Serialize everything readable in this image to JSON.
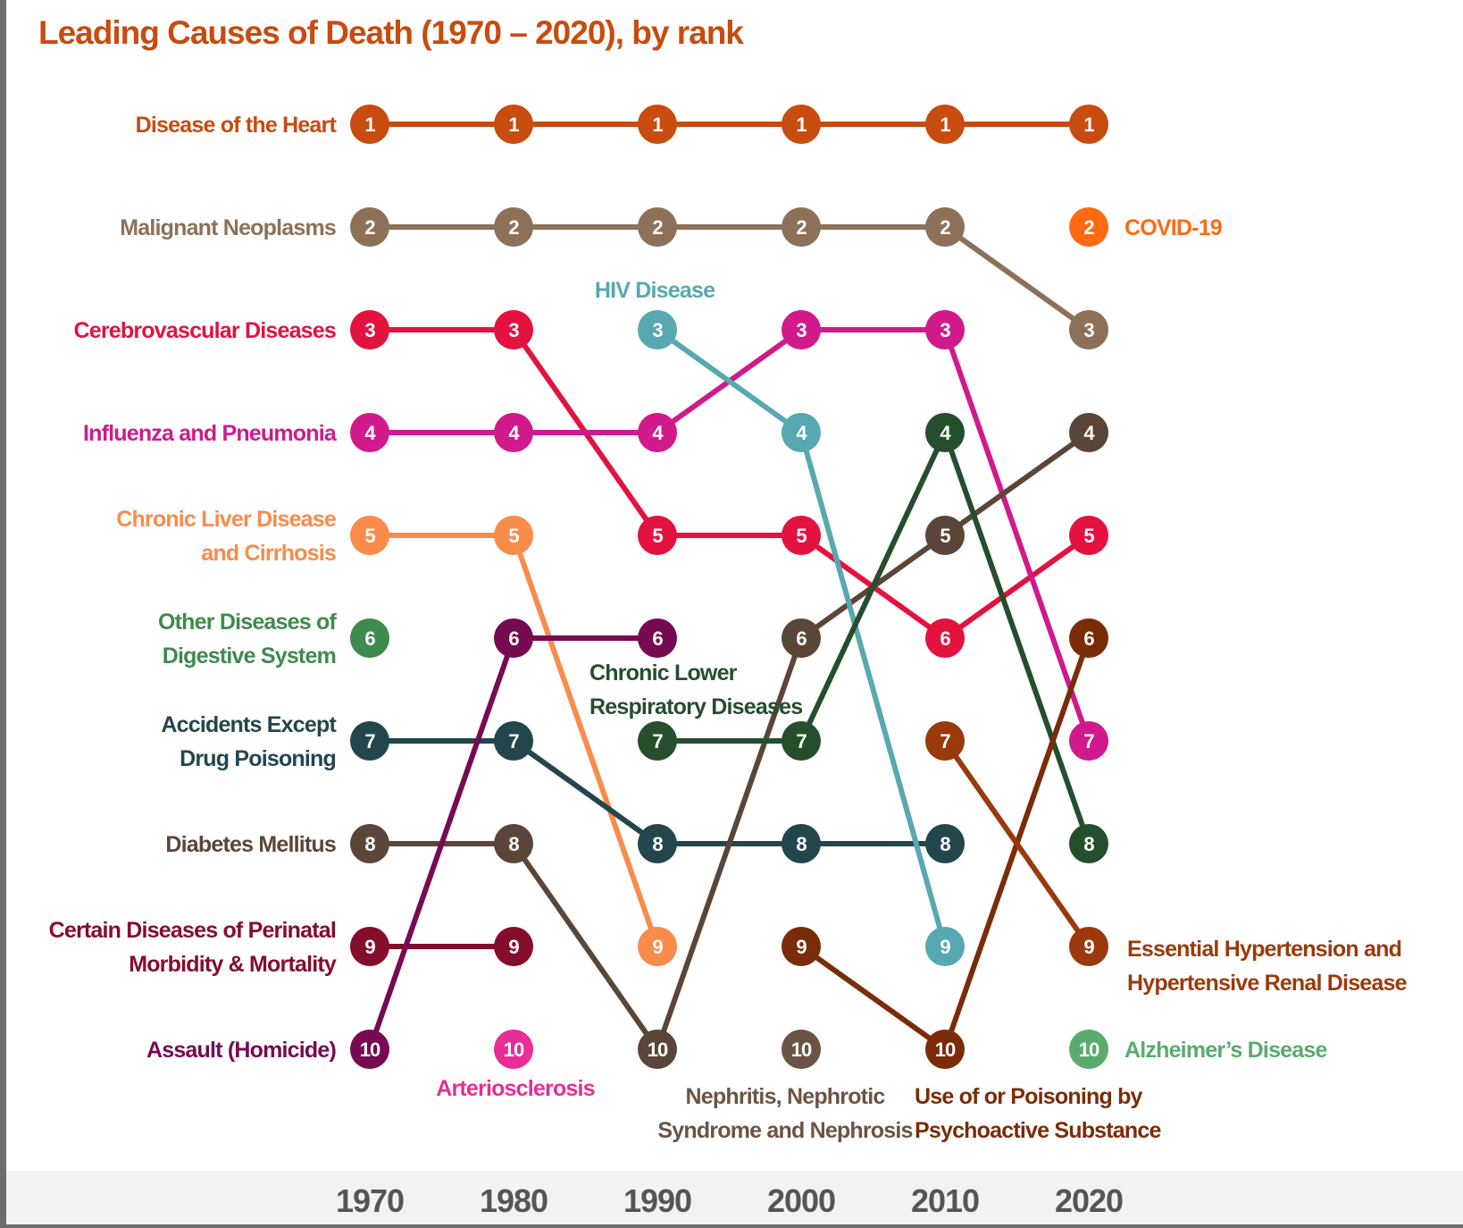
{
  "chart_data": {
    "type": "bump",
    "title": "Leading Causes of Death (1970 – 2020), by rank",
    "years": [
      "1970",
      "1980",
      "1990",
      "2000",
      "2010",
      "2020"
    ],
    "rank_range": [
      1,
      10
    ],
    "series": [
      {
        "name": "Disease of the Heart",
        "color": "#c84b0f",
        "ranks": [
          1,
          1,
          1,
          1,
          1,
          1
        ]
      },
      {
        "name": "Malignant Neoplasms",
        "color": "#8c7158",
        "ranks": [
          2,
          2,
          2,
          2,
          2,
          3
        ]
      },
      {
        "name": "Cerebrovascular Diseases",
        "color": "#e3123f",
        "ranks": [
          3,
          3,
          5,
          5,
          6,
          5
        ]
      },
      {
        "name": "Influenza and Pneumonia",
        "color": "#d01a8c",
        "ranks": [
          4,
          4,
          4,
          3,
          3,
          7
        ]
      },
      {
        "name": "Chronic Liver Disease and Cirrhosis",
        "color": "#f98b4b",
        "ranks": [
          5,
          5,
          9,
          null,
          null,
          null
        ]
      },
      {
        "name": "Other Diseases of Digestive System",
        "color": "#3f8a4e",
        "ranks": [
          6,
          null,
          null,
          null,
          null,
          null
        ]
      },
      {
        "name": "Accidents Except Drug Poisoning",
        "color": "#23464d",
        "ranks": [
          7,
          7,
          8,
          8,
          8,
          null
        ]
      },
      {
        "name": "Diabetes Mellitus",
        "color": "#5a4638",
        "ranks": [
          8,
          8,
          10,
          6,
          5,
          4
        ]
      },
      {
        "name": "Certain Diseases of Perinatal Morbidity & Mortality",
        "color": "#850d2c",
        "ranks": [
          9,
          9,
          null,
          null,
          null,
          null
        ]
      },
      {
        "name": "Assault (Homicide)",
        "color": "#760b52",
        "ranks": [
          10,
          6,
          6,
          null,
          null,
          null
        ]
      },
      {
        "name": "Arteriosclerosis",
        "color": "#e62e96",
        "ranks": [
          null,
          10,
          null,
          null,
          null,
          null
        ]
      },
      {
        "name": "HIV Disease",
        "color": "#57a8b1",
        "ranks": [
          null,
          null,
          3,
          4,
          9,
          null
        ]
      },
      {
        "name": "Chronic Lower Respiratory Diseases",
        "color": "#254e2d",
        "ranks": [
          null,
          null,
          7,
          7,
          4,
          8
        ]
      },
      {
        "name": "Nephritis, Nephrotic Syndrome and Nephrosis",
        "color": "#6b5445",
        "ranks": [
          null,
          null,
          null,
          10,
          null,
          null
        ]
      },
      {
        "name": "Use of or Poisoning by Psychoactive Substance",
        "color": "#7a2c08",
        "ranks": [
          null,
          null,
          null,
          9,
          10,
          6
        ]
      },
      {
        "name": "Essential Hypertension and Hypertensive Renal Disease",
        "color": "#9a3a0c",
        "ranks": [
          null,
          null,
          null,
          null,
          7,
          9
        ]
      },
      {
        "name": "COVID-19",
        "color": "#ff6a13",
        "ranks": [
          null,
          null,
          null,
          null,
          null,
          2
        ]
      },
      {
        "name": "Alzheimer’s Disease",
        "color": "#5bab6e",
        "ranks": [
          null,
          null,
          null,
          null,
          null,
          10
        ]
      }
    ]
  },
  "labels": {
    "left": [
      {
        "series": 0,
        "lines": [
          "Disease of the Heart"
        ]
      },
      {
        "series": 1,
        "lines": [
          "Malignant Neoplasms"
        ]
      },
      {
        "series": 2,
        "lines": [
          "Cerebrovascular Diseases"
        ]
      },
      {
        "series": 3,
        "lines": [
          "Influenza and Pneumonia"
        ]
      },
      {
        "series": 4,
        "lines": [
          "Chronic Liver Disease",
          "and Cirrhosis"
        ]
      },
      {
        "series": 5,
        "lines": [
          "Other Diseases of",
          "Digestive System"
        ]
      },
      {
        "series": 6,
        "lines": [
          "Accidents Except",
          "Drug Poisoning"
        ]
      },
      {
        "series": 7,
        "lines": [
          "Diabetes Mellitus"
        ]
      },
      {
        "series": 8,
        "lines": [
          "Certain Diseases of Perinatal",
          "Morbidity & Mortality"
        ]
      },
      {
        "series": 9,
        "lines": [
          "Assault (Homicide)"
        ]
      }
    ],
    "inline": [
      {
        "series": 10,
        "lines": [
          "Arteriosclerosis"
        ]
      },
      {
        "series": 11,
        "lines": [
          "HIV Disease"
        ]
      },
      {
        "series": 12,
        "lines": [
          "Chronic Lower",
          "Respiratory Diseases"
        ]
      },
      {
        "series": 13,
        "lines": [
          "Nephritis, Nephrotic",
          "Syndrome and Nephrosis"
        ]
      },
      {
        "series": 14,
        "lines": [
          "Use of or Poisoning by",
          "Psychoactive Substance"
        ]
      },
      {
        "series": 15,
        "lines": [
          "Essential Hypertension and",
          "Hypertensive Renal Disease"
        ]
      },
      {
        "series": 16,
        "lines": [
          "COVID-19"
        ]
      },
      {
        "series": 17,
        "lines": [
          "Alzheimer’s Disease"
        ]
      }
    ]
  }
}
